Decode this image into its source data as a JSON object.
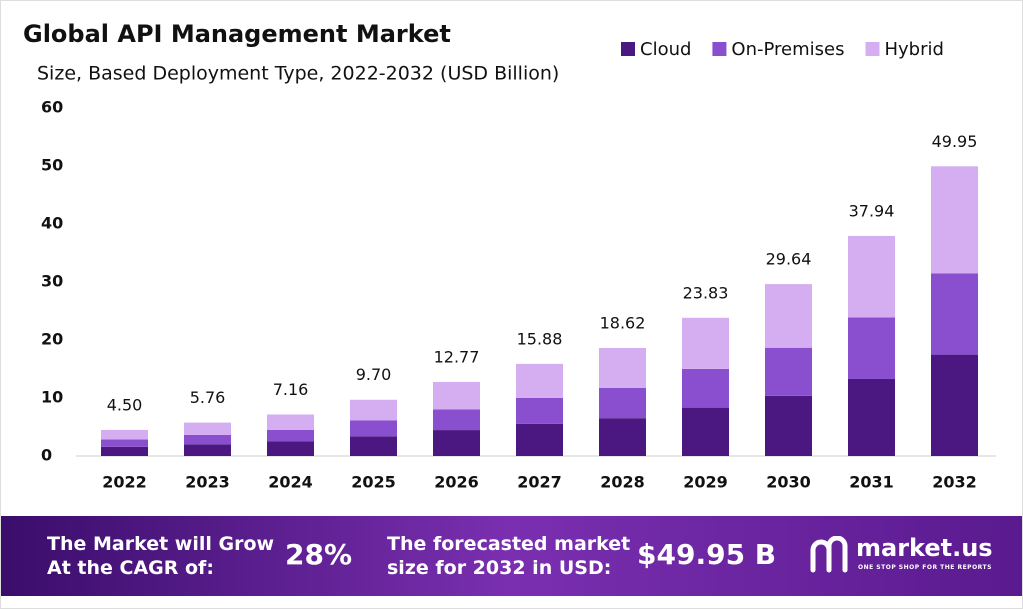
{
  "chart_data": {
    "type": "stacked_bar",
    "title": "Global API Management Market",
    "subtitle": "Size, Based Deployment Type, 2022-2032 (USD Billion)",
    "categories": [
      "2022",
      "2023",
      "2024",
      "2025",
      "2026",
      "2027",
      "2028",
      "2029",
      "2030",
      "2031",
      "2032"
    ],
    "series": [
      {
        "name": "Cloud",
        "color": "#4b1780",
        "values": [
          1.58,
          2.02,
          2.51,
          3.4,
          4.47,
          5.56,
          6.52,
          8.34,
          10.37,
          13.28,
          17.48
        ]
      },
      {
        "name": "On-Premises",
        "color": "#8a4fcf",
        "values": [
          1.26,
          1.61,
          2.0,
          2.72,
          3.58,
          4.45,
          5.21,
          6.67,
          8.3,
          10.62,
          13.99
        ]
      },
      {
        "name": "Hybrid",
        "color": "#d4aef0",
        "values": [
          1.66,
          2.13,
          2.65,
          3.58,
          4.72,
          5.87,
          6.89,
          8.82,
          10.97,
          14.04,
          18.48
        ]
      }
    ],
    "totals": {
      "values": [
        4.5,
        5.76,
        7.16,
        9.7,
        12.77,
        15.88,
        18.62,
        23.83,
        29.64,
        37.94,
        49.95
      ],
      "value_labels": [
        "4.50",
        "5.76",
        "7.16",
        "9.70",
        "12.77",
        "15.88",
        "18.62",
        "23.83",
        "29.64",
        "37.94",
        "49.95"
      ]
    },
    "ylim": [
      0,
      60
    ],
    "yticks": [
      0,
      10,
      20,
      30,
      40,
      50,
      60
    ],
    "grid": false,
    "legend": "top-right"
  },
  "footer": {
    "cagr_text": [
      "The Market will Grow",
      "At the CAGR of:"
    ],
    "cagr": "28%",
    "forecast_text": [
      "The forecasted market",
      "size for 2032 in USD:"
    ],
    "forecast": "$49.95 B",
    "brand": "market.us",
    "tagline": "ONE STOP SHOP FOR THE REPORTS"
  }
}
